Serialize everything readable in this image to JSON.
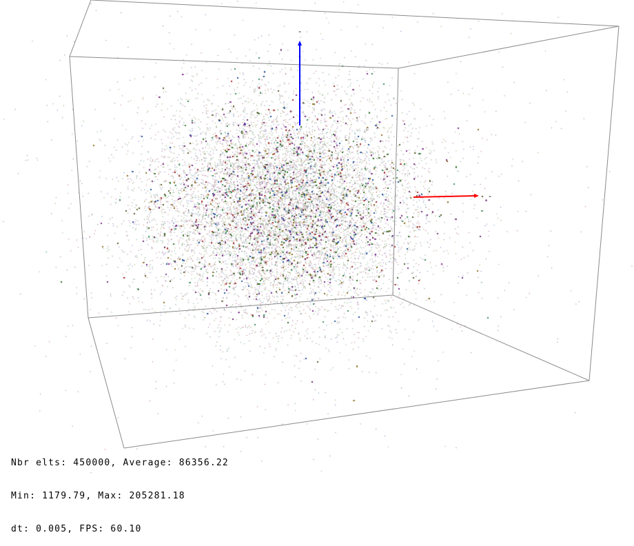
{
  "scene": {
    "background": "#ffffff",
    "box_color": "#8a8a8a",
    "axes": [
      {
        "name": "x",
        "color": "#ff0000",
        "label": "-"
      },
      {
        "name": "z",
        "color": "#0000ff",
        "label": "-"
      }
    ],
    "particle_colors": [
      "#2a6e1e",
      "#7a2a8a",
      "#8a6a1a",
      "#1e4e9a",
      "#a02a2a",
      "#3a8a5a",
      "#5a5a2a",
      "#6a2a6a"
    ]
  },
  "stats": {
    "line1": "Nbr elts: 450000, Average: 86356.22",
    "line2": "Min: 1179.79, Max: 205281.18",
    "line3": "dt: 0.005, FPS: 60.10"
  }
}
